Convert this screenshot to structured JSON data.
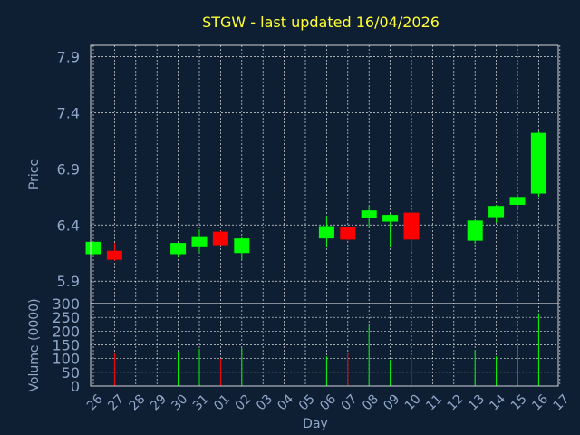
{
  "chart_data": [
    {
      "type": "candlestick",
      "title": "STGW - last updated 16/04/2026",
      "ylabel": "Price",
      "ylim": [
        5.7,
        8.0
      ],
      "yticks": [
        "5.9",
        "6.4",
        "6.9",
        "7.4",
        "7.9"
      ],
      "up_color": "#00ff00",
      "down_color": "#ff0000",
      "categories": [
        "26",
        "27",
        "28",
        "29",
        "30",
        "31",
        "01",
        "02",
        "03",
        "04",
        "05",
        "06",
        "07",
        "08",
        "09",
        "10",
        "11",
        "12",
        "13",
        "14",
        "15",
        "16",
        "17"
      ],
      "candles": [
        {
          "day": "26",
          "open": 6.14,
          "high": 6.25,
          "low": 6.13,
          "close": 6.25
        },
        {
          "day": "27",
          "open": 6.17,
          "high": 6.24,
          "low": 6.08,
          "close": 6.09
        },
        {
          "day": "30",
          "open": 6.14,
          "high": 6.24,
          "low": 6.11,
          "close": 6.24
        },
        {
          "day": "31",
          "open": 6.21,
          "high": 6.36,
          "low": 6.15,
          "close": 6.3
        },
        {
          "day": "01",
          "open": 6.34,
          "high": 6.35,
          "low": 6.22,
          "close": 6.22
        },
        {
          "day": "02",
          "open": 6.15,
          "high": 6.29,
          "low": 6.09,
          "close": 6.28
        },
        {
          "day": "06",
          "open": 6.28,
          "high": 6.48,
          "low": 6.2,
          "close": 6.39
        },
        {
          "day": "07",
          "open": 6.38,
          "high": 6.39,
          "low": 6.26,
          "close": 6.27
        },
        {
          "day": "08",
          "open": 6.46,
          "high": 6.57,
          "low": 6.37,
          "close": 6.53
        },
        {
          "day": "09",
          "open": 6.43,
          "high": 6.5,
          "low": 6.2,
          "close": 6.49
        },
        {
          "day": "10",
          "open": 6.51,
          "high": 6.52,
          "low": 6.16,
          "close": 6.27
        },
        {
          "day": "13",
          "open": 6.26,
          "high": 6.44,
          "low": 6.23,
          "close": 6.44
        },
        {
          "day": "14",
          "open": 6.47,
          "high": 6.58,
          "low": 6.42,
          "close": 6.57
        },
        {
          "day": "15",
          "open": 6.58,
          "high": 6.67,
          "low": 6.53,
          "close": 6.65
        },
        {
          "day": "16",
          "open": 6.68,
          "high": 7.24,
          "low": 6.65,
          "close": 7.22
        }
      ]
    },
    {
      "type": "bar",
      "ylabel": "Volume (0000)",
      "xlabel": "Day",
      "ylim": [
        0,
        300
      ],
      "yticks": [
        "0",
        "50",
        "100",
        "150",
        "200",
        "250",
        "300"
      ],
      "categories": [
        "26",
        "27",
        "28",
        "29",
        "30",
        "31",
        "01",
        "02",
        "03",
        "04",
        "05",
        "06",
        "07",
        "08",
        "09",
        "10",
        "11",
        "12",
        "13",
        "14",
        "15",
        "16",
        "17"
      ],
      "bars": [
        {
          "day": "27",
          "value": 118,
          "direction": "down"
        },
        {
          "day": "30",
          "value": 125,
          "direction": "up"
        },
        {
          "day": "31",
          "value": 135,
          "direction": "up"
        },
        {
          "day": "01",
          "value": 100,
          "direction": "down"
        },
        {
          "day": "02",
          "value": 138,
          "direction": "up"
        },
        {
          "day": "06",
          "value": 108,
          "direction": "up"
        },
        {
          "day": "07",
          "value": 122,
          "direction": "down"
        },
        {
          "day": "08",
          "value": 218,
          "direction": "up"
        },
        {
          "day": "09",
          "value": 95,
          "direction": "up"
        },
        {
          "day": "10",
          "value": 108,
          "direction": "down"
        },
        {
          "day": "13",
          "value": 130,
          "direction": "up"
        },
        {
          "day": "14",
          "value": 108,
          "direction": "up"
        },
        {
          "day": "15",
          "value": 148,
          "direction": "up"
        },
        {
          "day": "16",
          "value": 265,
          "direction": "up"
        }
      ]
    }
  ]
}
